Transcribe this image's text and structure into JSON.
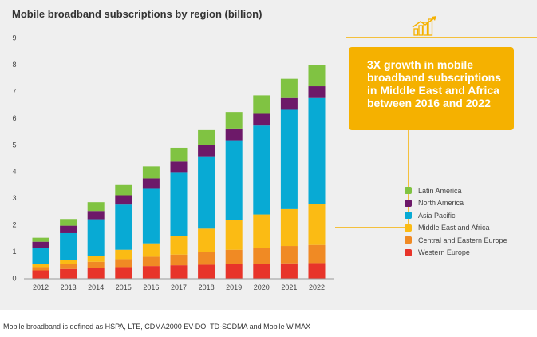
{
  "chart_data": {
    "type": "bar",
    "stacked": true,
    "title": "Mobile broadband subscriptions by region (billion)",
    "xlabel": "",
    "ylabel": "",
    "ylim": [
      0,
      9
    ],
    "yticks": [
      "0",
      "1",
      "2",
      "3",
      "4",
      "5",
      "6",
      "7",
      "8",
      "9"
    ],
    "grid": false,
    "legend_position": "right",
    "categories": [
      "2012",
      "2013",
      "2014",
      "2015",
      "2016",
      "2017",
      "2018",
      "2019",
      "2020",
      "2021",
      "2022"
    ],
    "series": [
      {
        "name": "Western Europe",
        "color": "#e8342a",
        "values": [
          0.3,
          0.35,
          0.38,
          0.42,
          0.46,
          0.49,
          0.51,
          0.53,
          0.55,
          0.56,
          0.57
        ]
      },
      {
        "name": "Central and Eastern Europe",
        "color": "#f08a24",
        "values": [
          0.12,
          0.18,
          0.24,
          0.3,
          0.35,
          0.4,
          0.47,
          0.54,
          0.6,
          0.65,
          0.68
        ]
      },
      {
        "name": "Middle East and Africa",
        "color": "#fbbb14",
        "values": [
          0.12,
          0.17,
          0.23,
          0.35,
          0.5,
          0.68,
          0.88,
          1.1,
          1.24,
          1.38,
          1.53
        ]
      },
      {
        "name": "Asia Pacific",
        "color": "#08aad4",
        "values": [
          0.61,
          0.99,
          1.36,
          1.69,
          2.04,
          2.38,
          2.71,
          3.0,
          3.33,
          3.72,
          3.97
        ]
      },
      {
        "name": "North America",
        "color": "#6d1969",
        "values": [
          0.22,
          0.28,
          0.31,
          0.35,
          0.39,
          0.42,
          0.42,
          0.44,
          0.44,
          0.44,
          0.44
        ]
      },
      {
        "name": "Latin America",
        "color": "#80c342",
        "values": [
          0.15,
          0.25,
          0.33,
          0.38,
          0.45,
          0.52,
          0.56,
          0.62,
          0.69,
          0.72,
          0.78
        ]
      }
    ]
  },
  "callout": {
    "lines": [
      "3X growth in mobile",
      "broadband subscriptions",
      "in Middle East and Africa",
      "between 2016 and 2022"
    ],
    "icon": "growth-chart-icon",
    "color": "#f5b100"
  },
  "legend": {
    "items": [
      {
        "label": "Latin America",
        "color": "#80c342"
      },
      {
        "label": "North America",
        "color": "#6d1969"
      },
      {
        "label": "Asia Pacific",
        "color": "#08aad4"
      },
      {
        "label": "Middle East and Africa",
        "color": "#fbbb14"
      },
      {
        "label": "Central and Eastern Europe",
        "color": "#f08a24"
      },
      {
        "label": "Western Europe",
        "color": "#e8342a"
      }
    ]
  },
  "footnote": "Mobile broadband is defined as HSPA, LTE, CDMA2000 EV-DO, TD-SCDMA and Mobile WiMAX"
}
